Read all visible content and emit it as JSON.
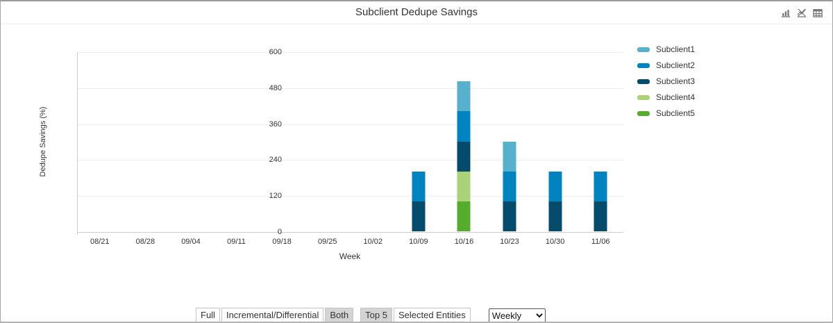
{
  "header": {
    "title": "Subclient Dedupe Savings",
    "icons": [
      "bar-chart",
      "line-chart-off",
      "table-view"
    ]
  },
  "chart_data": {
    "type": "bar",
    "stacked": true,
    "title": "Subclient Dedupe Savings",
    "xlabel": "Week",
    "ylabel": "Dedupe Savings (%)",
    "ylim": [
      0,
      600
    ],
    "yticks": [
      0,
      120,
      240,
      360,
      480,
      600
    ],
    "grid": true,
    "legend_position": "right",
    "categories": [
      "08/21",
      "08/28",
      "09/04",
      "09/11",
      "09/18",
      "09/25",
      "10/02",
      "10/09",
      "10/16",
      "10/23",
      "10/30",
      "11/06"
    ],
    "series": [
      {
        "name": "Subclient1",
        "color": "#58b1cc",
        "values": [
          0,
          0,
          0,
          0,
          0,
          0,
          0,
          0,
          100,
          100,
          0,
          0
        ]
      },
      {
        "name": "Subclient2",
        "color": "#0084c1",
        "values": [
          0,
          0,
          0,
          0,
          0,
          0,
          0,
          100,
          100,
          100,
          100,
          100
        ]
      },
      {
        "name": "Subclient3",
        "color": "#054b6c",
        "values": [
          0,
          0,
          0,
          0,
          0,
          0,
          0,
          100,
          100,
          100,
          100,
          100
        ]
      },
      {
        "name": "Subclient4",
        "color": "#aad377",
        "values": [
          0,
          0,
          0,
          0,
          0,
          0,
          0,
          0,
          100,
          0,
          0,
          0
        ]
      },
      {
        "name": "Subclient5",
        "color": "#56ad2d",
        "values": [
          0,
          0,
          0,
          0,
          0,
          0,
          0,
          0,
          100,
          0,
          0,
          0
        ]
      }
    ],
    "stack_order_bottom_to_top": [
      "Subclient5",
      "Subclient4",
      "Subclient3",
      "Subclient2",
      "Subclient1"
    ]
  },
  "controls": {
    "scope_group": [
      {
        "label": "Full",
        "selected": false
      },
      {
        "label": "Incremental/Differential",
        "selected": false
      },
      {
        "label": "Both",
        "selected": true
      }
    ],
    "entities_group": [
      {
        "label": "Top 5",
        "selected": true
      },
      {
        "label": "Selected Entities",
        "selected": false
      }
    ],
    "frequency_select": {
      "value": "Weekly",
      "options": [
        "Weekly"
      ]
    }
  },
  "colors": {
    "grid": "#eeeeee",
    "axis": "#cccccc",
    "text": "#333333",
    "selected_button_bg": "#d4d4d4"
  }
}
